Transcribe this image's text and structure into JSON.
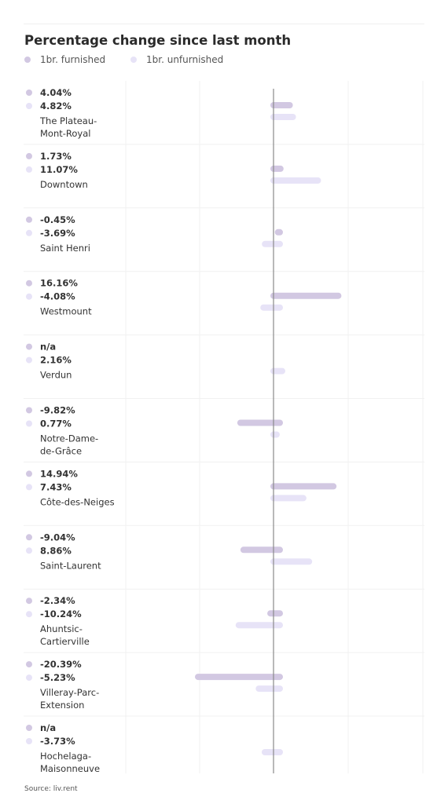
{
  "chart_data": {
    "type": "bar",
    "orientation": "horizontal",
    "title": "Percentage change since last month",
    "series": [
      {
        "name": "1br. furnished",
        "color": "#d2c8e2",
        "values": [
          4.04,
          1.73,
          -0.45,
          16.16,
          null,
          -9.82,
          14.94,
          -9.04,
          -2.34,
          -20.39,
          null
        ],
        "labels": [
          "4.04%",
          "1.73%",
          "-0.45%",
          "16.16%",
          "n/a",
          "-9.82%",
          "14.94%",
          "-9.04%",
          "-2.34%",
          "-20.39%",
          "n/a"
        ]
      },
      {
        "name": "1br. unfurnished",
        "color": "#e7e3f7",
        "values": [
          4.82,
          11.07,
          -3.69,
          -4.08,
          2.16,
          0.77,
          7.43,
          8.86,
          -10.24,
          -5.23,
          -3.73
        ],
        "labels": [
          "4.82%",
          "11.07%",
          "-3.69%",
          "-4.08%",
          "2.16%",
          "0.77%",
          "7.43%",
          "8.86%",
          "-10.24%",
          "-5.23%",
          "-3.73%"
        ]
      }
    ],
    "categories": [
      [
        "The Plateau-",
        "Mont-Royal"
      ],
      [
        "Downtown"
      ],
      [
        "Saint Henri"
      ],
      [
        "Westmount"
      ],
      [
        "Verdun"
      ],
      [
        "Notre-Dame-",
        "de-Grâce"
      ],
      [
        "Côte-des-Neiges"
      ],
      [
        "Saint-Laurent"
      ],
      [
        "Ahuntsic-",
        "Cartierville"
      ],
      [
        "Villeray-Parc-",
        "Extension"
      ],
      [
        "Hochelaga-",
        "Maisonneuve"
      ]
    ],
    "xlim": [
      -20.5,
      20.5
    ],
    "grid": true,
    "legend_position": "top-left"
  },
  "source": "Source: liv.rent"
}
